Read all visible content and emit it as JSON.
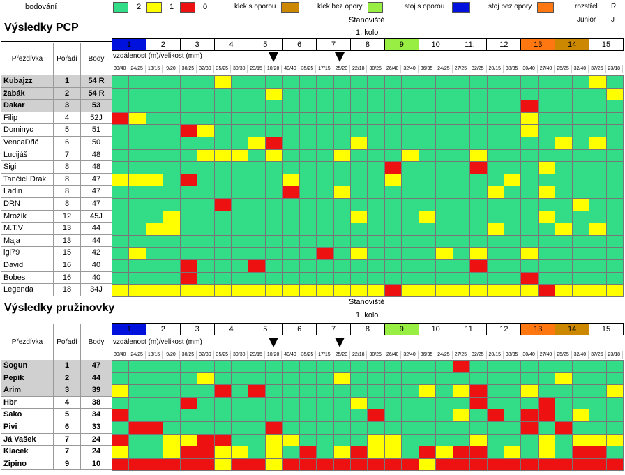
{
  "legend": {
    "bodovani": "bodování",
    "items": [
      {
        "value": "2",
        "color": "#33dd88"
      },
      {
        "value": "1",
        "color": "#ffff00"
      },
      {
        "value": "0",
        "color": "#ee1111"
      }
    ],
    "positions": [
      {
        "label": "klek s oporou",
        "color": "#cc8800"
      },
      {
        "label": "klek bez opory",
        "color": "#99ee44"
      },
      {
        "label": "stoj s oporou",
        "color": "#0011dd"
      },
      {
        "label": "stoj bez opory",
        "color": "#ff7711"
      }
    ],
    "rozstrel": "rozstřel",
    "rozstrel_code": "R",
    "junior": "Junior",
    "junior_code": "J"
  },
  "colors": {
    "G": "#33dd88",
    "Y": "#ffff00",
    "R": "#ee1111"
  },
  "station_colors": {
    "1": "#0011dd",
    "9": "#99ee44",
    "13": "#ff7711",
    "14": "#cc8800"
  },
  "stations": [
    "1",
    "2",
    "3",
    "4",
    "5",
    "6",
    "7",
    "8",
    "9",
    "10",
    "11.",
    "12",
    "13",
    "14",
    "15"
  ],
  "distances": [
    "30/40",
    "24/25",
    "13/15",
    "9/20",
    "30/25",
    "32/30",
    "35/25",
    "30/30",
    "23/15",
    "10/20",
    "40/40",
    "35/25",
    "17/15",
    "25/20",
    "22/18",
    "30/25",
    "26/40",
    "32/40",
    "36/35",
    "24/25",
    "27/25",
    "32/25",
    "20/15",
    "38/35",
    "30/40",
    "27/40",
    "25/25",
    "32/40",
    "37/25",
    "23/18"
  ],
  "pcp": {
    "title": "Výsledky PCP",
    "stanoviste": "Stanoviště",
    "kolo": "1. kolo",
    "distance_label": "vzdálenost (m)/velikost (mm)",
    "col_name": "Přezdívka",
    "col_rank": "Pořadí",
    "col_points": "Body",
    "rows": [
      {
        "name": "Kubajzz",
        "rank": "1",
        "points": "54 R",
        "bold": true,
        "cells": "GGGGGGYGGGGGGGGGGGGGGGGGGGGGYG"
      },
      {
        "name": "žabák",
        "rank": "2",
        "points": "54 R",
        "bold": true,
        "cells": "GGGGGGGGGYGGGGGGGGGGGGGGGGGGGY"
      },
      {
        "name": "Dakar",
        "rank": "3",
        "points": "53",
        "bold": true,
        "cells": "GGGGGGGGGGGGGGGGGGGGGGGGRGGGGG"
      },
      {
        "name": "Filip",
        "rank": "4",
        "points": "52J",
        "bold": false,
        "cells": "RYGGGGGGGGGGGGGGGGGGGGGGYGGGGG"
      },
      {
        "name": "Dominyc",
        "rank": "5",
        "points": "51",
        "bold": false,
        "cells": "GGGGRYGGGGGGGGGGGGGGGGGGYGGGGG"
      },
      {
        "name": "VencaDřič",
        "rank": "6",
        "points": "50",
        "bold": false,
        "cells": "GGGGGGGGYRGGGGYGGGGGGGGGGGYGYG"
      },
      {
        "name": "Lucijáš",
        "rank": "7",
        "points": "48",
        "bold": false,
        "cells": "GGGGGYYYGYGGGYGGGYGGGYGGGGGGGG"
      },
      {
        "name": "Sigi",
        "rank": "8",
        "points": "48",
        "bold": false,
        "cells": "GGGGGGGGGGGGGGGGRGGGGRGGGYGGGG"
      },
      {
        "name": "Tančící Drak",
        "rank": "8",
        "points": "47",
        "bold": false,
        "cells": "YYYGRGGGGGYGGGGGYGGGGGGYGGGGGG"
      },
      {
        "name": "Ladin",
        "rank": "8",
        "points": "47",
        "bold": false,
        "cells": "GGGGGGGGGGRGGYGGGGGGGGYGGYGGGG"
      },
      {
        "name": "DRN",
        "rank": "8",
        "points": "47",
        "bold": false,
        "cells": "GGGGGGRGGGGGGGGGGGGGGGGGGGGYGG"
      },
      {
        "name": "Mrožík",
        "rank": "12",
        "points": "45J",
        "bold": false,
        "cells": "GGGYGGGGGGGGGGYGGGYGGGGGGYGGGG"
      },
      {
        "name": "M.T.V",
        "rank": "13",
        "points": "44",
        "bold": false,
        "cells": "GGYYGGGGGGGGGGGGGGGGGGYGGGYGYG"
      },
      {
        "name": "Maja",
        "rank": "13",
        "points": "44",
        "bold": false,
        "cells": "GGGGGGGGGGGGGGGGGGGGGGGGGGGGGG"
      },
      {
        "name": "igi79",
        "rank": "15",
        "points": "42",
        "bold": false,
        "cells": "GYGGGGGGGGGGRGYGGGGYGYGGYGGGGG"
      },
      {
        "name": "David",
        "rank": "16",
        "points": "40",
        "bold": false,
        "cells": "GGGGRGGGRGGGGGGGGGGGGRGGGGGGGG"
      },
      {
        "name": "Bobes",
        "rank": "16",
        "points": "40",
        "bold": false,
        "cells": "GGGGRGGGGGGGGGGGGGGGGGGGRGGGGG"
      },
      {
        "name": "Legenda",
        "rank": "18",
        "points": "34J",
        "bold": false,
        "cells": "YYYYYYYYYYYYYYYYRYYYYYYYYRYYYY"
      }
    ]
  },
  "pruzinovky": {
    "title": "Výsledky pružinovky",
    "stanoviste": "Stanoviště",
    "kolo": "1. kolo",
    "distance_label": "vzdálenost (m)/velikost (mm)",
    "col_name": "Přezdívka",
    "col_rank": "Pořadí",
    "col_points": "Body",
    "rows": [
      {
        "name": "Šogun",
        "rank": "1",
        "points": "47",
        "bold": true,
        "cells": "GGGGGGGGGGGGGGGGGGGGRGGGGGGGGG"
      },
      {
        "name": "Pepík",
        "rank": "2",
        "points": "44",
        "bold": true,
        "cells": "GGGGGYGGGGGGGYGGGGGGGGGGGGYGGG"
      },
      {
        "name": "Arim",
        "rank": "3",
        "points": "39",
        "bold": true,
        "cells": "YGGGGGRGRGGGGGGGGGYGYRGGYGGGGY"
      },
      {
        "name": "Hbr",
        "rank": "4",
        "points": "38",
        "bold": true,
        "cells": "GGGGRGGGGGGGGGYGGGGGGRGGGRGGGG"
      },
      {
        "name": "Sako",
        "rank": "5",
        "points": "34",
        "bold": true,
        "cells": "RGGGGGGGGGGGGGGRGGGGYGRGRRGYGG"
      },
      {
        "name": "Pivi",
        "rank": "6",
        "points": "33",
        "bold": true,
        "cells": "GRRGGGGGGRGGGGGGGGGGGGGGRGRGGG"
      },
      {
        "name": "Já Vašek",
        "rank": "7",
        "points": "24",
        "bold": true,
        "cells": "RGGYYRRGGYYGGGGYYGGGGYGGGYGYYY"
      },
      {
        "name": "Klacek",
        "rank": "7",
        "points": "24",
        "bold": true,
        "cells": "YGGYRRYYGYGRGYRYYGRYRRGYGYGRRG"
      },
      {
        "name": "Zipino",
        "rank": "9",
        "points": "10",
        "bold": true,
        "cells": "RRRRRRYRRYRRRRRRRRYRRRRRRRRRRR"
      }
    ]
  }
}
